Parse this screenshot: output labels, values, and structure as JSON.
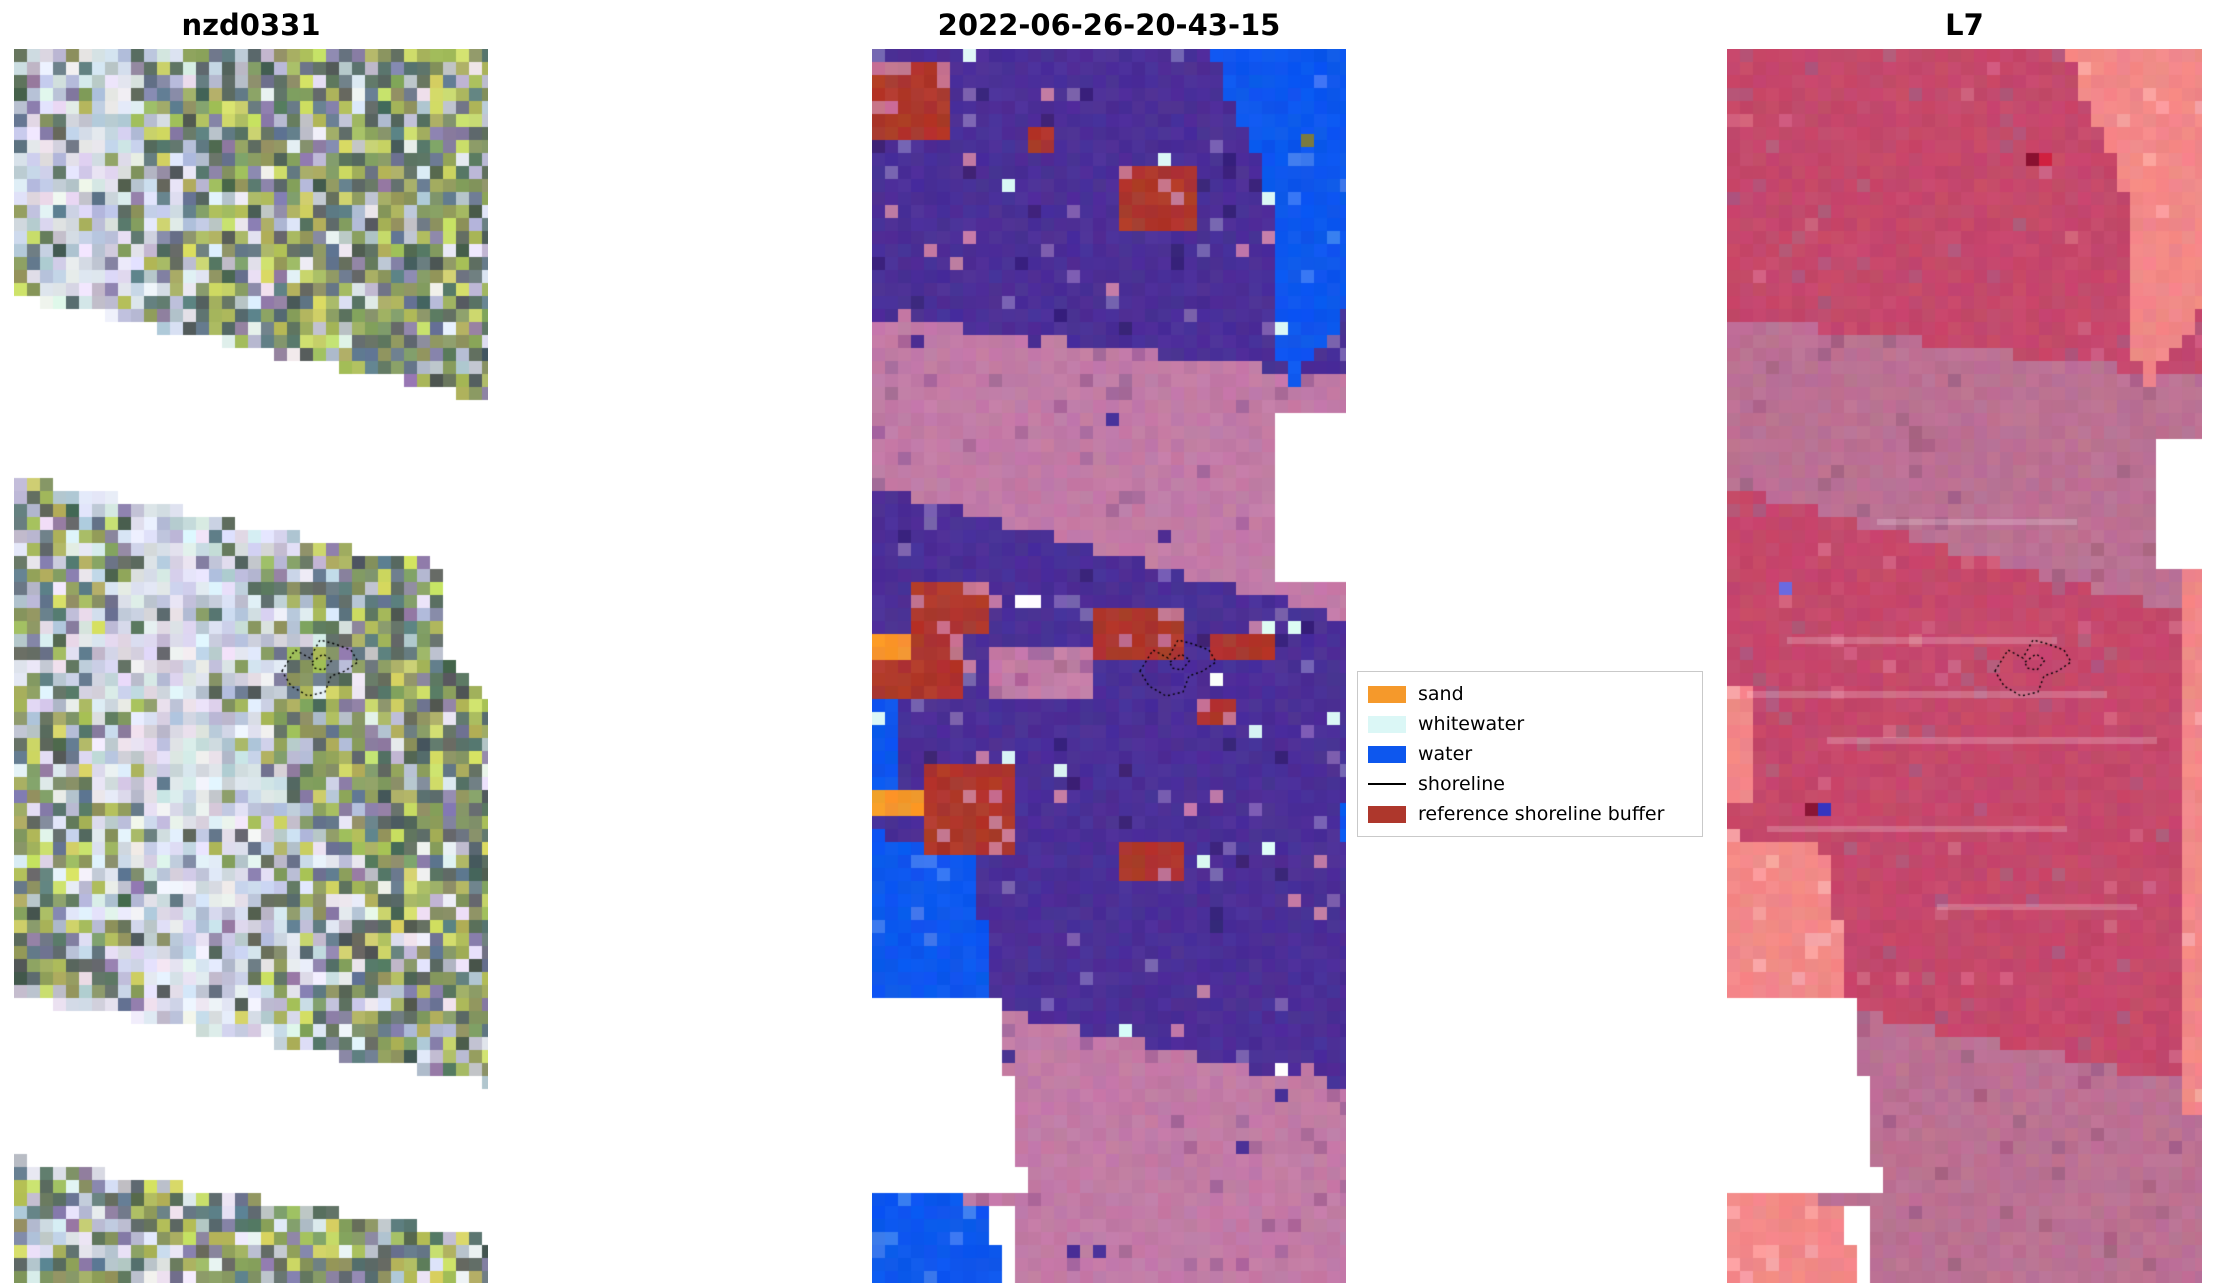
{
  "figure": {
    "panels": [
      {
        "title": "nzd0331"
      },
      {
        "title": "2022-06-26-20-43-15"
      },
      {
        "title": "L7"
      }
    ]
  },
  "legend": {
    "items": [
      {
        "label": "sand",
        "color": "#f5992b",
        "swatch": "patch"
      },
      {
        "label": "whitewater",
        "color": "#dbf7f6",
        "swatch": "patch"
      },
      {
        "label": "water",
        "color": "#0d57ee",
        "swatch": "patch"
      },
      {
        "label": "shoreline",
        "color": "#000000",
        "swatch": "line"
      },
      {
        "label": "reference shoreline buffer",
        "color": "#ae372c",
        "swatch": "patch"
      }
    ]
  },
  "palette": {
    "background": "#ffffff",
    "classification": {
      "field": "#4b2f97",
      "band": "#c27ba6",
      "water": "#0d57ee",
      "sand": "#f5992b",
      "whitewater": "#dbf7f6",
      "reference_buffer": "#ae372c"
    },
    "l7": {
      "field": "#c5486b",
      "band": "#bb7193",
      "water": "#f28888"
    },
    "rgb_imagery": {
      "tones": [
        "#8a9a63",
        "#aab75f",
        "#cfd96a",
        "#5f7266",
        "#667a8a",
        "#8d82a8",
        "#b9c0cf",
        "#e6e9f2",
        "#4d5f55"
      ],
      "highlight_tones": [
        "#dfe3ee",
        "#cbd2e2",
        "#e9ecf5",
        "#b8c2d4",
        "#d5dbe8"
      ]
    }
  }
}
